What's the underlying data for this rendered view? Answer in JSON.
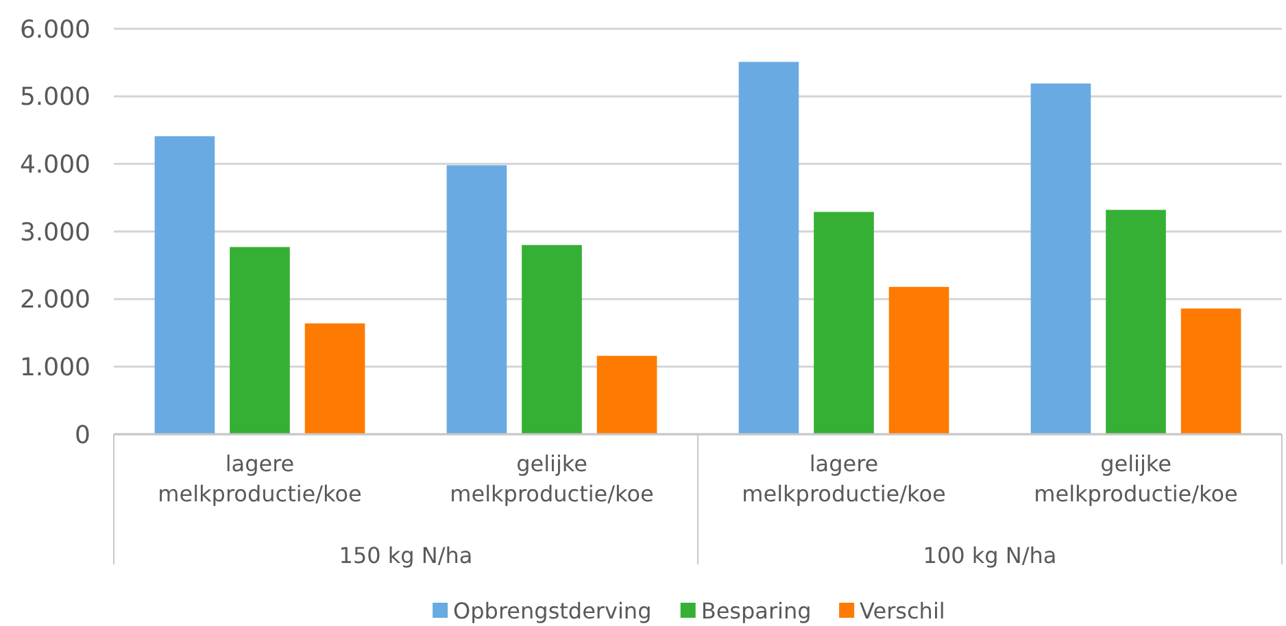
{
  "chart_data": {
    "type": "bar",
    "categories": [
      "lagere melkproductie/koe",
      "gelijke melkproductie/koe",
      "lagere melkproductie/koe",
      "gelijke melkproductie/koe"
    ],
    "series": [
      {
        "name": "Opbrengstderving",
        "color": "#69aae2",
        "values": [
          4410,
          3980,
          5510,
          5190
        ]
      },
      {
        "name": "Besparing",
        "color": "#35b035",
        "values": [
          2770,
          2800,
          3290,
          3320
        ]
      },
      {
        "name": "Verschil",
        "color": "#ff7a00",
        "values": [
          1640,
          1160,
          2180,
          1860
        ]
      }
    ],
    "annotations": [
      "150 kg N/ha",
      "100 kg N/ha"
    ],
    "ylim": [
      0,
      6000
    ],
    "yticks": [
      {
        "value": 0,
        "label": "0"
      },
      {
        "value": 1000,
        "label": "1.000"
      },
      {
        "value": 2000,
        "label": "2.000"
      },
      {
        "value": 3000,
        "label": "3.000"
      },
      {
        "value": 4000,
        "label": "4.000"
      },
      {
        "value": 5000,
        "label": "5.000"
      },
      {
        "value": 6000,
        "label": "6.000"
      }
    ],
    "grid": true,
    "legend": "bottom"
  }
}
